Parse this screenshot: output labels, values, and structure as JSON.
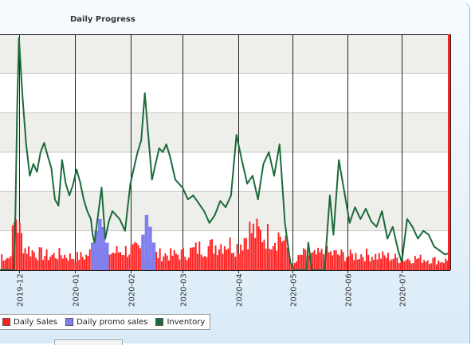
{
  "chart_data": {
    "type": "bar+line",
    "title": "Daily Progress",
    "xlabel": "",
    "ylabel": "",
    "x_range": [
      "2019-11-16",
      "2020-07-28"
    ],
    "ylim": [
      0,
      300
    ],
    "grid": true,
    "legend_position": "bottom-left",
    "tick_labels": [
      "2019-12",
      "2020-01",
      "2020-02",
      "2020-03",
      "2020-04",
      "2020-05",
      "2020-06",
      "2020-07"
    ],
    "colors": {
      "daily_sales": "#ff2020",
      "daily_promo_sales": "#8080ee",
      "inventory": "#1b6b3a",
      "grid_band": "#eeeeea"
    },
    "series": [
      {
        "name": "Daily Sales",
        "kind": "bar",
        "description_of_levels": "mostly between 10 and 35 units per day",
        "points": [
          [
            "2019-11-20",
            20
          ],
          [
            "2019-11-25",
            15
          ],
          [
            "2019-11-29",
            70
          ],
          [
            "2019-12-01",
            48
          ],
          [
            "2019-12-04",
            28
          ],
          [
            "2019-12-10",
            22
          ],
          [
            "2019-12-17",
            18
          ],
          [
            "2019-12-24",
            20
          ],
          [
            "2019-12-31",
            16
          ],
          [
            "2020-01-07",
            18
          ],
          [
            "2020-01-14",
            30
          ],
          [
            "2020-01-21",
            22
          ],
          [
            "2020-01-28",
            25
          ],
          [
            "2020-02-04",
            25
          ],
          [
            "2020-02-11",
            18
          ],
          [
            "2020-02-18",
            20
          ],
          [
            "2020-02-25",
            19
          ],
          [
            "2020-03-03",
            22
          ],
          [
            "2020-03-10",
            28
          ],
          [
            "2020-03-17",
            30
          ],
          [
            "2020-03-24",
            35
          ],
          [
            "2020-03-31",
            30
          ],
          [
            "2020-04-07",
            50
          ],
          [
            "2020-04-14",
            45
          ],
          [
            "2020-04-21",
            42
          ],
          [
            "2020-04-24",
            45
          ],
          [
            "2020-04-28",
            28
          ],
          [
            "2020-05-01",
            5
          ],
          [
            "2020-05-06",
            20
          ],
          [
            "2020-05-12",
            18
          ],
          [
            "2020-05-19",
            22
          ],
          [
            "2020-05-26",
            20
          ],
          [
            "2020-06-02",
            18
          ],
          [
            "2020-06-09",
            20
          ],
          [
            "2020-06-16",
            18
          ],
          [
            "2020-06-23",
            17
          ],
          [
            "2020-06-30",
            14
          ],
          [
            "2020-07-07",
            15
          ],
          [
            "2020-07-14",
            14
          ],
          [
            "2020-07-21",
            12
          ],
          [
            "2020-07-27",
            12
          ]
        ]
      },
      {
        "name": "Daily promo sales",
        "kind": "bar",
        "points": [
          [
            "2020-01-10",
            35
          ],
          [
            "2020-01-12",
            50
          ],
          [
            "2020-01-14",
            65
          ],
          [
            "2020-01-16",
            55
          ],
          [
            "2020-01-18",
            35
          ],
          [
            "2020-02-07",
            45
          ],
          [
            "2020-02-09",
            70
          ],
          [
            "2020-02-11",
            55
          ],
          [
            "2020-02-13",
            35
          ]
        ]
      },
      {
        "name": "Inventory",
        "kind": "line",
        "points": [
          [
            "2019-11-16",
            0
          ],
          [
            "2019-11-28",
            0
          ],
          [
            "2019-11-29",
            70
          ],
          [
            "2019-11-30",
            210
          ],
          [
            "2019-12-01",
            295
          ],
          [
            "2019-12-03",
            220
          ],
          [
            "2019-12-05",
            160
          ],
          [
            "2019-12-07",
            120
          ],
          [
            "2019-12-09",
            135
          ],
          [
            "2019-12-11",
            125
          ],
          [
            "2019-12-13",
            150
          ],
          [
            "2019-12-15",
            162
          ],
          [
            "2019-12-17",
            145
          ],
          [
            "2019-12-19",
            130
          ],
          [
            "2019-12-21",
            90
          ],
          [
            "2019-12-23",
            82
          ],
          [
            "2019-12-25",
            140
          ],
          [
            "2019-12-27",
            110
          ],
          [
            "2019-12-29",
            95
          ],
          [
            "2019-12-31",
            108
          ],
          [
            "2020-01-02",
            128
          ],
          [
            "2020-01-04",
            112
          ],
          [
            "2020-01-06",
            90
          ],
          [
            "2020-01-08",
            75
          ],
          [
            "2020-01-10",
            65
          ],
          [
            "2020-01-11",
            45
          ],
          [
            "2020-01-12",
            35
          ],
          [
            "2020-01-14",
            70
          ],
          [
            "2020-01-16",
            105
          ],
          [
            "2020-01-18",
            40
          ],
          [
            "2020-01-20",
            62
          ],
          [
            "2020-01-22",
            75
          ],
          [
            "2020-01-24",
            70
          ],
          [
            "2020-01-26",
            65
          ],
          [
            "2020-01-29",
            50
          ],
          [
            "2020-02-01",
            110
          ],
          [
            "2020-02-03",
            130
          ],
          [
            "2020-02-05",
            150
          ],
          [
            "2020-02-07",
            165
          ],
          [
            "2020-02-09",
            225
          ],
          [
            "2020-02-11",
            170
          ],
          [
            "2020-02-13",
            115
          ],
          [
            "2020-02-15",
            135
          ],
          [
            "2020-02-17",
            155
          ],
          [
            "2020-02-19",
            150
          ],
          [
            "2020-02-21",
            160
          ],
          [
            "2020-02-23",
            145
          ],
          [
            "2020-02-26",
            115
          ],
          [
            "2020-03-01",
            105
          ],
          [
            "2020-03-04",
            90
          ],
          [
            "2020-03-07",
            95
          ],
          [
            "2020-03-10",
            85
          ],
          [
            "2020-03-13",
            75
          ],
          [
            "2020-03-16",
            60
          ],
          [
            "2020-03-19",
            70
          ],
          [
            "2020-03-22",
            88
          ],
          [
            "2020-03-25",
            80
          ],
          [
            "2020-03-28",
            95
          ],
          [
            "2020-03-31",
            172
          ],
          [
            "2020-04-03",
            140
          ],
          [
            "2020-04-06",
            110
          ],
          [
            "2020-04-09",
            120
          ],
          [
            "2020-04-12",
            90
          ],
          [
            "2020-04-15",
            135
          ],
          [
            "2020-04-18",
            150
          ],
          [
            "2020-04-21",
            120
          ],
          [
            "2020-04-24",
            160
          ],
          [
            "2020-04-27",
            60
          ],
          [
            "2020-04-30",
            10
          ],
          [
            "2020-05-02",
            0
          ],
          [
            "2020-05-09",
            0
          ],
          [
            "2020-05-10",
            35
          ],
          [
            "2020-05-12",
            0
          ],
          [
            "2020-05-19",
            0
          ],
          [
            "2020-05-22",
            95
          ],
          [
            "2020-05-24",
            45
          ],
          [
            "2020-05-27",
            140
          ],
          [
            "2020-05-30",
            100
          ],
          [
            "2020-06-02",
            60
          ],
          [
            "2020-06-05",
            80
          ],
          [
            "2020-06-08",
            65
          ],
          [
            "2020-06-11",
            78
          ],
          [
            "2020-06-14",
            62
          ],
          [
            "2020-06-17",
            55
          ],
          [
            "2020-06-20",
            75
          ],
          [
            "2020-06-23",
            40
          ],
          [
            "2020-06-26",
            55
          ],
          [
            "2020-06-29",
            25
          ],
          [
            "2020-07-01",
            10
          ],
          [
            "2020-07-04",
            65
          ],
          [
            "2020-07-07",
            55
          ],
          [
            "2020-07-10",
            40
          ],
          [
            "2020-07-13",
            50
          ],
          [
            "2020-07-16",
            45
          ],
          [
            "2020-07-19",
            30
          ],
          [
            "2020-07-22",
            25
          ],
          [
            "2020-07-25",
            20
          ],
          [
            "2020-07-28",
            22
          ]
        ]
      }
    ]
  }
}
